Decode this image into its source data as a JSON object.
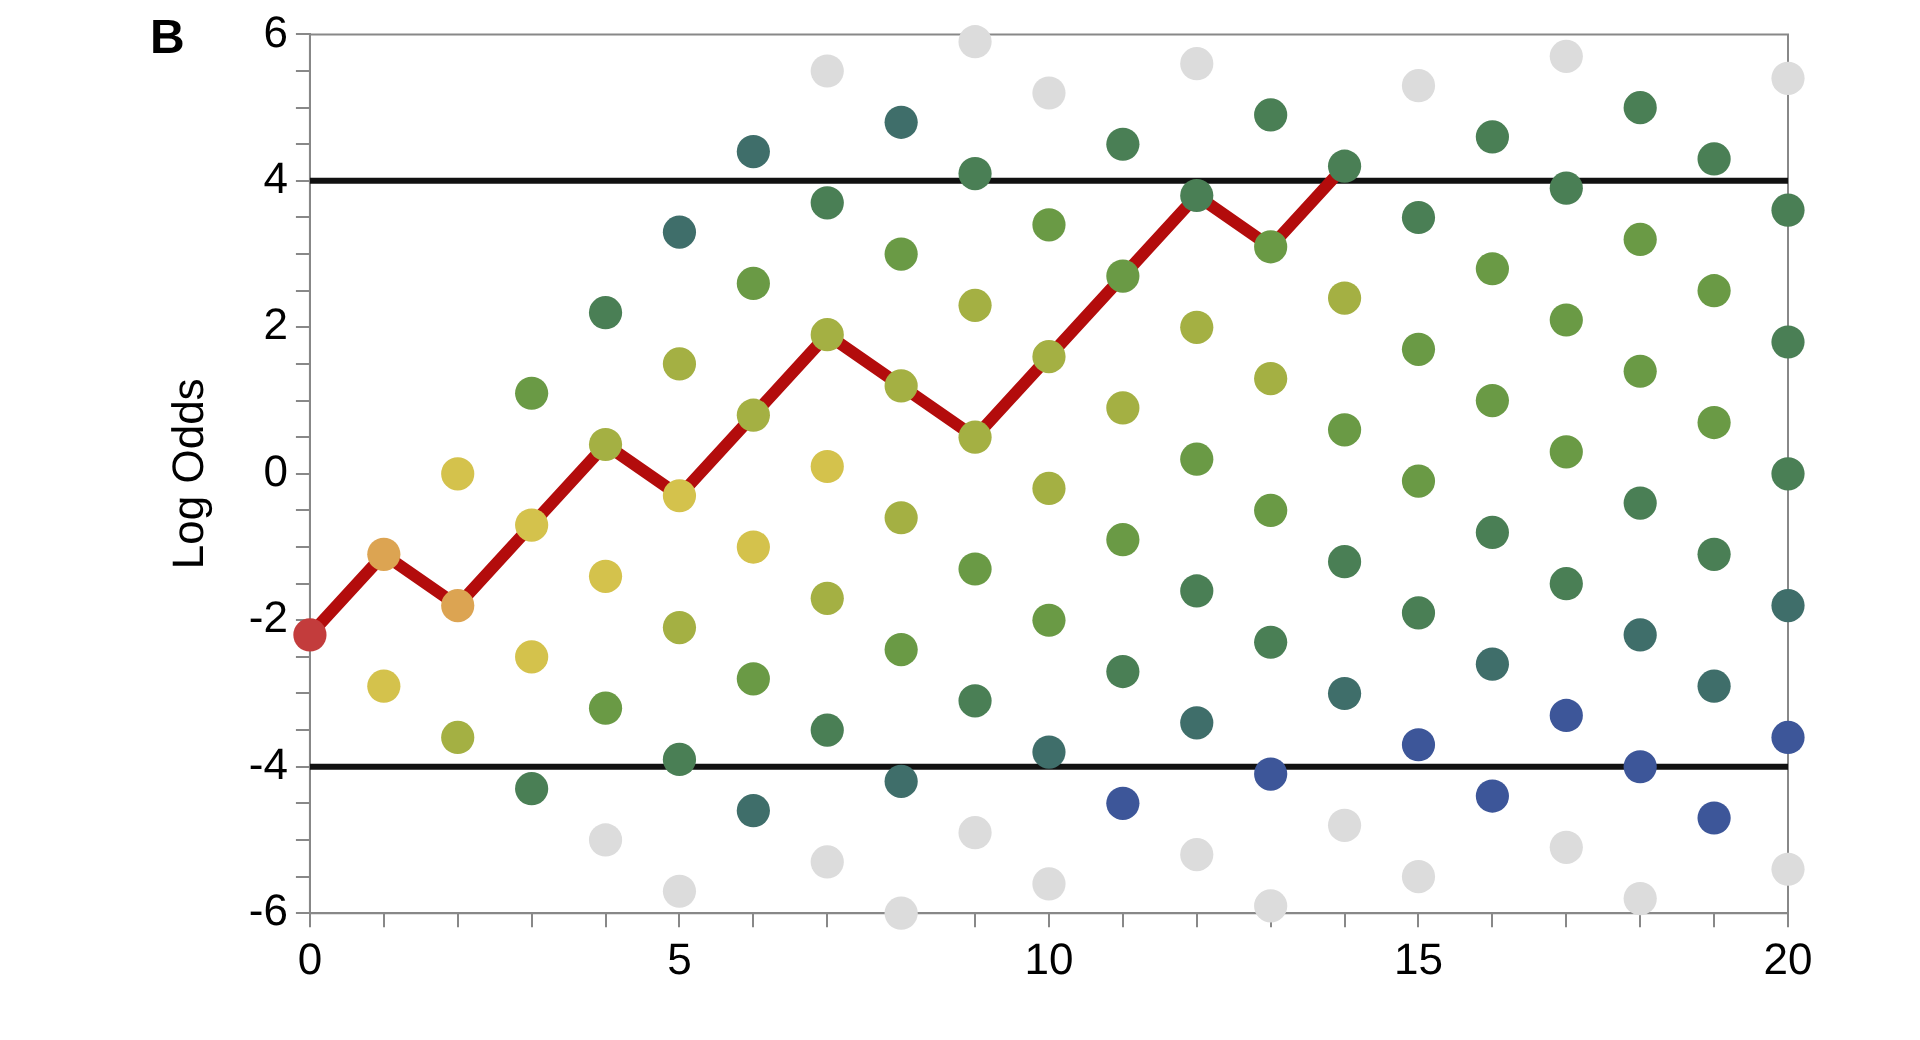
{
  "chart_data": {
    "type": "scatter",
    "ylabel": "Log Odds",
    "annotations": [
      "B"
    ],
    "xlim": [
      0,
      20
    ],
    "ylim": [
      -6,
      6
    ],
    "xticks": [
      0,
      {
        "value": 1,
        "label": null
      },
      {
        "value": 2,
        "label": null
      },
      {
        "value": 3,
        "label": null
      },
      {
        "value": 4,
        "label": null
      },
      5,
      {
        "value": 6,
        "label": null
      },
      {
        "value": 7,
        "label": null
      },
      {
        "value": 8,
        "label": null
      },
      {
        "value": 9,
        "label": null
      },
      10,
      {
        "value": 11,
        "label": null
      },
      {
        "value": 12,
        "label": null
      },
      {
        "value": 13,
        "label": null
      },
      {
        "value": 14,
        "label": null
      },
      15,
      {
        "value": 16,
        "label": null
      },
      {
        "value": 17,
        "label": null
      },
      {
        "value": 18,
        "label": null
      },
      {
        "value": 19,
        "label": null
      },
      20
    ],
    "yticks": [
      -6,
      {
        "value": -5.5,
        "label": null
      },
      {
        "value": -5,
        "label": null
      },
      {
        "value": -4.5,
        "label": null
      },
      -4,
      {
        "value": -3.5,
        "label": null
      },
      {
        "value": -3,
        "label": null
      },
      {
        "value": -2.5,
        "label": null
      },
      -2,
      {
        "value": -1.5,
        "label": null
      },
      {
        "value": -1,
        "label": null
      },
      {
        "value": -0.5,
        "label": null
      },
      0,
      {
        "value": 0.5,
        "label": null
      },
      {
        "value": 1,
        "label": null
      },
      {
        "value": 1.5,
        "label": null
      },
      2,
      {
        "value": 2.5,
        "label": null
      },
      {
        "value": 3,
        "label": null
      },
      {
        "value": 3.5,
        "label": null
      },
      4,
      {
        "value": 4.5,
        "label": null
      },
      {
        "value": 5,
        "label": null
      },
      {
        "value": 5.5,
        "label": null
      },
      6
    ],
    "grid": false,
    "legend": false,
    "marker": "circle",
    "ref_lines": [
      {
        "axis": "y",
        "value": 4,
        "color": "#111111"
      },
      {
        "axis": "y",
        "value": -4,
        "color": "#111111"
      }
    ],
    "series": [
      {
        "type": "line",
        "marker": "none",
        "color": "#b30c0c",
        "x": [
          0,
          1,
          2,
          3,
          4,
          5,
          6,
          7,
          8,
          9,
          10,
          11,
          12,
          13,
          14
        ],
        "values": [
          -2.2,
          -1.1,
          -1.8,
          -0.7,
          0.4,
          -0.3,
          0.8,
          1.9,
          1.2,
          0.5,
          1.6,
          2.7,
          3.8,
          3.1,
          4.2
        ]
      },
      {
        "color": "#dcdcdc",
        "x": [
          4,
          5,
          7,
          7,
          8,
          9,
          9,
          10,
          10,
          12,
          12,
          13,
          14,
          15,
          15,
          17,
          17,
          18,
          20,
          20
        ],
        "values": [
          -5.0,
          -5.7,
          -5.3,
          5.5,
          -6.0,
          -4.9,
          5.9,
          -5.6,
          5.2,
          -5.2,
          5.6,
          -5.9,
          -4.8,
          -5.5,
          5.3,
          -5.1,
          5.7,
          -5.8,
          -5.4,
          5.4
        ]
      },
      {
        "color": "#c33c3c",
        "x": [
          0
        ],
        "values": [
          -2.2
        ]
      },
      {
        "color": "#dca452",
        "x": [
          1,
          2
        ],
        "values": [
          -1.1,
          -1.8
        ]
      },
      {
        "color": "#d4c24c",
        "x": [
          1,
          2,
          3,
          3,
          4,
          5,
          6,
          7
        ],
        "values": [
          -2.9,
          0.0,
          -0.7,
          -2.5,
          -1.4,
          -0.3,
          -1.0,
          0.1
        ]
      },
      {
        "color": "#a4b043",
        "x": [
          2,
          4,
          5,
          5,
          6,
          7,
          7,
          8,
          8,
          9,
          9,
          10,
          10,
          11,
          12,
          13,
          14
        ],
        "values": [
          -3.6,
          0.4,
          1.5,
          -2.1,
          0.8,
          1.9,
          -1.7,
          1.2,
          -0.6,
          2.3,
          0.5,
          1.6,
          -0.2,
          0.9,
          2.0,
          1.3,
          2.4
        ]
      },
      {
        "color": "#6a9a45",
        "x": [
          3,
          4,
          6,
          6,
          8,
          8,
          9,
          10,
          10,
          11,
          11,
          12,
          13,
          13,
          14,
          15,
          15,
          16,
          16,
          17,
          17,
          18,
          18,
          19,
          19
        ],
        "values": [
          1.1,
          -3.2,
          2.6,
          -2.8,
          3.0,
          -2.4,
          -1.3,
          3.4,
          -2.0,
          2.7,
          -0.9,
          0.2,
          3.1,
          -0.5,
          0.6,
          1.7,
          -0.1,
          2.8,
          1.0,
          2.1,
          0.3,
          3.2,
          1.4,
          2.5,
          0.7
        ]
      },
      {
        "color": "#4a7f55",
        "x": [
          3,
          4,
          5,
          7,
          7,
          9,
          9,
          11,
          11,
          12,
          12,
          13,
          13,
          14,
          14,
          15,
          15,
          16,
          16,
          17,
          17,
          18,
          18,
          19,
          19,
          20,
          20,
          20
        ],
        "values": [
          -4.3,
          2.2,
          -3.9,
          3.7,
          -3.5,
          4.1,
          -3.1,
          4.5,
          -2.7,
          3.8,
          -1.6,
          4.9,
          -2.3,
          4.2,
          -1.2,
          3.5,
          -1.9,
          4.6,
          -0.8,
          3.9,
          -1.5,
          5.0,
          -0.4,
          4.3,
          -1.1,
          3.6,
          1.8,
          0.0
        ]
      },
      {
        "color": "#3f6e6a",
        "x": [
          5,
          6,
          6,
          8,
          8,
          10,
          12,
          14,
          16,
          18,
          19,
          20
        ],
        "values": [
          3.3,
          4.4,
          -4.6,
          4.8,
          -4.2,
          -3.8,
          -3.4,
          -3.0,
          -2.6,
          -2.2,
          -2.9,
          -1.8
        ]
      },
      {
        "color": "#3d5699",
        "x": [
          11,
          13,
          15,
          16,
          17,
          18,
          19,
          20
        ],
        "values": [
          -4.5,
          -4.1,
          -3.7,
          -4.4,
          -3.3,
          -4.0,
          -4.7,
          -3.6
        ]
      }
    ]
  }
}
